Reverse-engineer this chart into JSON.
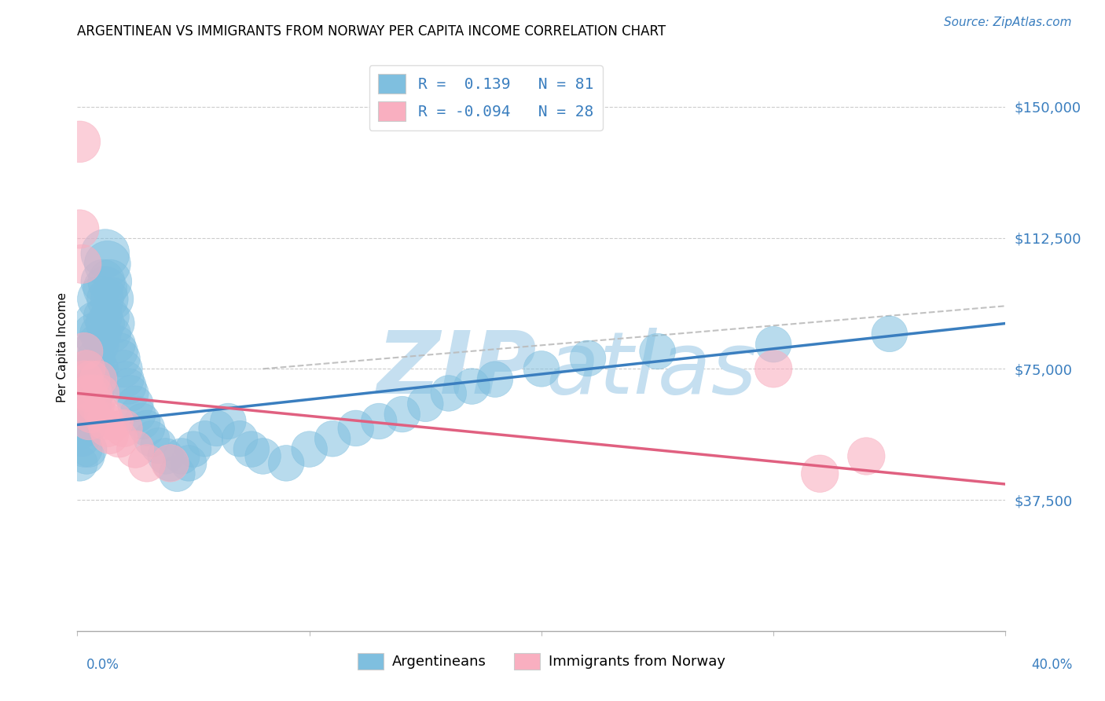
{
  "title": "ARGENTINEAN VS IMMIGRANTS FROM NORWAY PER CAPITA INCOME CORRELATION CHART",
  "source": "Source: ZipAtlas.com",
  "ylabel": "Per Capita Income",
  "yticks": [
    37500,
    75000,
    112500,
    150000
  ],
  "ytick_labels": [
    "$37,500",
    "$75,000",
    "$112,500",
    "$150,000"
  ],
  "xlim": [
    0.0,
    0.4
  ],
  "ylim": [
    0,
    162500
  ],
  "legend_r1_text": "R =  0.139   N = 81",
  "legend_r2_text": "R = -0.094   N = 28",
  "blue_color": "#7fbfdf",
  "pink_color": "#f9afc0",
  "trend_blue": "#3a7ebf",
  "trend_pink": "#e06080",
  "trend_gray": "#bbbbbb",
  "blue_points_x": [
    0.001,
    0.001,
    0.002,
    0.002,
    0.003,
    0.003,
    0.003,
    0.004,
    0.004,
    0.004,
    0.004,
    0.005,
    0.005,
    0.005,
    0.005,
    0.006,
    0.006,
    0.006,
    0.007,
    0.007,
    0.007,
    0.008,
    0.008,
    0.008,
    0.009,
    0.009,
    0.01,
    0.01,
    0.01,
    0.011,
    0.011,
    0.012,
    0.012,
    0.012,
    0.013,
    0.013,
    0.014,
    0.014,
    0.015,
    0.015,
    0.016,
    0.017,
    0.018,
    0.019,
    0.02,
    0.021,
    0.022,
    0.023,
    0.025,
    0.026,
    0.028,
    0.03,
    0.032,
    0.035,
    0.038,
    0.04,
    0.043,
    0.045,
    0.048,
    0.05,
    0.055,
    0.06,
    0.065,
    0.07,
    0.075,
    0.08,
    0.09,
    0.1,
    0.11,
    0.12,
    0.13,
    0.14,
    0.15,
    0.16,
    0.17,
    0.18,
    0.2,
    0.22,
    0.25,
    0.3,
    0.35
  ],
  "blue_points_y": [
    57000,
    48000,
    62000,
    55000,
    68000,
    58000,
    52000,
    72000,
    64000,
    58000,
    50000,
    75000,
    68000,
    60000,
    52000,
    80000,
    70000,
    62000,
    85000,
    75000,
    65000,
    88000,
    78000,
    68000,
    82000,
    72000,
    95000,
    85000,
    75000,
    100000,
    90000,
    108000,
    98000,
    88000,
    105000,
    95000,
    100000,
    90000,
    95000,
    85000,
    88000,
    82000,
    80000,
    78000,
    75000,
    72000,
    70000,
    68000,
    65000,
    62000,
    60000,
    58000,
    55000,
    53000,
    50000,
    48000,
    45000,
    50000,
    48000,
    52000,
    55000,
    58000,
    60000,
    55000,
    52000,
    50000,
    48000,
    52000,
    55000,
    58000,
    60000,
    62000,
    65000,
    68000,
    70000,
    72000,
    75000,
    78000,
    80000,
    82000,
    85000
  ],
  "blue_sizes_raw": [
    60,
    60,
    60,
    60,
    60,
    60,
    60,
    60,
    60,
    60,
    60,
    60,
    60,
    60,
    60,
    70,
    60,
    60,
    80,
    70,
    60,
    90,
    70,
    60,
    80,
    60,
    100,
    80,
    60,
    90,
    70,
    110,
    90,
    70,
    100,
    80,
    90,
    70,
    85,
    65,
    75,
    65,
    65,
    65,
    65,
    60,
    60,
    60,
    60,
    60,
    60,
    60,
    60,
    60,
    60,
    60,
    60,
    60,
    60,
    60,
    60,
    60,
    60,
    60,
    60,
    60,
    60,
    60,
    60,
    60,
    60,
    60,
    60,
    60,
    60,
    60,
    60,
    60,
    60,
    60,
    60
  ],
  "pink_points_x": [
    0.001,
    0.001,
    0.002,
    0.003,
    0.003,
    0.004,
    0.004,
    0.005,
    0.005,
    0.006,
    0.006,
    0.007,
    0.008,
    0.009,
    0.01,
    0.011,
    0.012,
    0.013,
    0.014,
    0.016,
    0.018,
    0.02,
    0.025,
    0.03,
    0.04,
    0.3,
    0.32,
    0.34
  ],
  "pink_points_y": [
    140000,
    115000,
    105000,
    80000,
    72000,
    75000,
    65000,
    68000,
    60000,
    72000,
    62000,
    68000,
    65000,
    72000,
    68000,
    62000,
    60000,
    58000,
    56000,
    60000,
    55000,
    58000,
    52000,
    48000,
    48000,
    75000,
    45000,
    50000
  ],
  "pink_sizes_raw": [
    80,
    70,
    70,
    65,
    65,
    65,
    65,
    65,
    65,
    65,
    65,
    65,
    65,
    65,
    65,
    65,
    65,
    65,
    65,
    65,
    65,
    65,
    65,
    65,
    65,
    65,
    65,
    65
  ],
  "blue_trend_x0": 0.0,
  "blue_trend_y0": 59000,
  "blue_trend_x1": 0.4,
  "blue_trend_y1": 88000,
  "gray_trend_x0": 0.08,
  "gray_trend_y0": 75000,
  "gray_trend_x1": 0.4,
  "gray_trend_y1": 93000,
  "pink_trend_x0": 0.0,
  "pink_trend_y0": 68000,
  "pink_trend_x1": 0.4,
  "pink_trend_y1": 42000,
  "watermark_zip": "ZIP",
  "watermark_atlas": "atlas",
  "watermark_color": "#c5dff0",
  "xtick_left_label": "0.0%",
  "xtick_right_label": "40.0%",
  "bottom_legend_blue": "Argentineans",
  "bottom_legend_pink": "Immigrants from Norway"
}
